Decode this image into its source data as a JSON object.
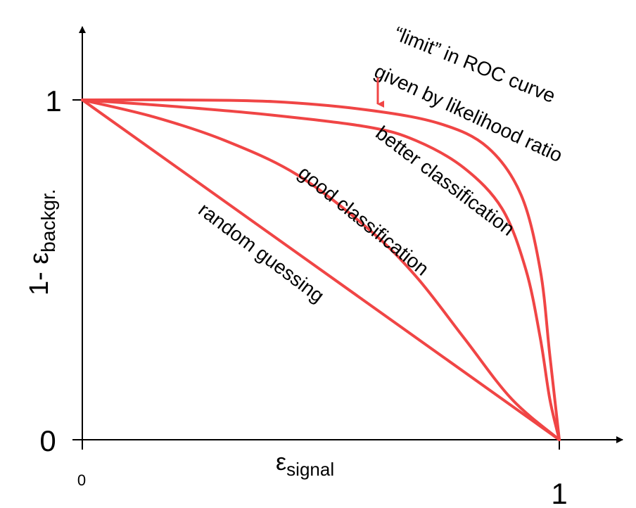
{
  "chart_data": {
    "type": "line",
    "title": "",
    "xlabel": {
      "main": "ε",
      "sub": "signal"
    },
    "ylabel": {
      "main": "1- ε",
      "sub": "backgr."
    },
    "xlim": [
      0,
      1
    ],
    "ylim": [
      0,
      1
    ],
    "grid": false,
    "x_ticks": [
      {
        "value": 0,
        "label": "0"
      },
      {
        "value": 1,
        "label": "1"
      }
    ],
    "y_ticks": [
      {
        "value": 0,
        "label": "0"
      },
      {
        "value": 1,
        "label": "1"
      }
    ],
    "series_color": "#f04545",
    "series": [
      {
        "label": "random guessing",
        "points": [
          [
            0,
            1
          ],
          [
            1,
            0
          ]
        ]
      },
      {
        "label": "good classification",
        "points": [
          [
            0,
            1
          ],
          [
            0.15,
            0.95
          ],
          [
            0.3,
            0.88
          ],
          [
            0.45,
            0.78
          ],
          [
            0.6,
            0.62
          ],
          [
            0.7,
            0.48
          ],
          [
            0.8,
            0.3
          ],
          [
            0.9,
            0.12
          ],
          [
            1,
            0
          ]
        ]
      },
      {
        "label": "better classification",
        "points": [
          [
            0,
            1
          ],
          [
            0.2,
            0.98
          ],
          [
            0.4,
            0.955
          ],
          [
            0.6,
            0.92
          ],
          [
            0.7,
            0.88
          ],
          [
            0.8,
            0.8
          ],
          [
            0.88,
            0.68
          ],
          [
            0.93,
            0.5
          ],
          [
            0.96,
            0.3
          ],
          [
            0.98,
            0.12
          ],
          [
            1,
            0
          ]
        ]
      },
      {
        "label": "“limit” in ROC curve given by likelihood ratio",
        "points": [
          [
            0,
            1
          ],
          [
            0.2,
            1.0
          ],
          [
            0.4,
            0.995
          ],
          [
            0.6,
            0.97
          ],
          [
            0.75,
            0.93
          ],
          [
            0.85,
            0.86
          ],
          [
            0.92,
            0.72
          ],
          [
            0.96,
            0.5
          ],
          [
            0.98,
            0.25
          ],
          [
            1,
            0
          ]
        ]
      }
    ],
    "annotations": [
      {
        "text": "random guessing",
        "series": 0
      },
      {
        "text": "good classification",
        "series": 1
      },
      {
        "text": "better classification",
        "series": 2
      },
      {
        "lines": [
          "“limit” in ROC curve",
          "given by likelihood ratio"
        ],
        "series": 3,
        "arrow": true
      }
    ]
  }
}
